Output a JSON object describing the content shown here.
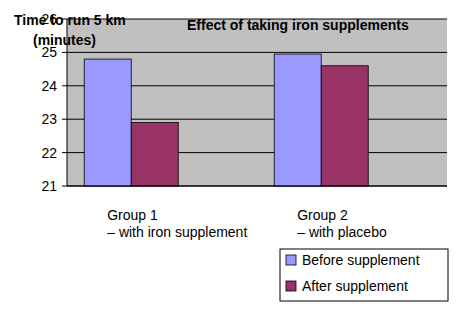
{
  "chart_data": {
    "type": "bar",
    "title": "Effect of taking iron supplements",
    "y_label": "Time to run 5 km\n(minutes)",
    "categories": [
      "Group 1\n– with iron supplement",
      "Group 2\n– with placebo"
    ],
    "series": [
      {
        "name": "Before supplement",
        "color": "#9999ff",
        "values": [
          24.8,
          24.95
        ]
      },
      {
        "name": "After supplement",
        "color": "#993366",
        "values": [
          22.9,
          24.6
        ]
      }
    ],
    "ylim": [
      21,
      26
    ],
    "yticks": [
      21,
      22,
      23,
      24,
      25,
      26
    ],
    "grid": true,
    "legend": "bottom-right"
  }
}
